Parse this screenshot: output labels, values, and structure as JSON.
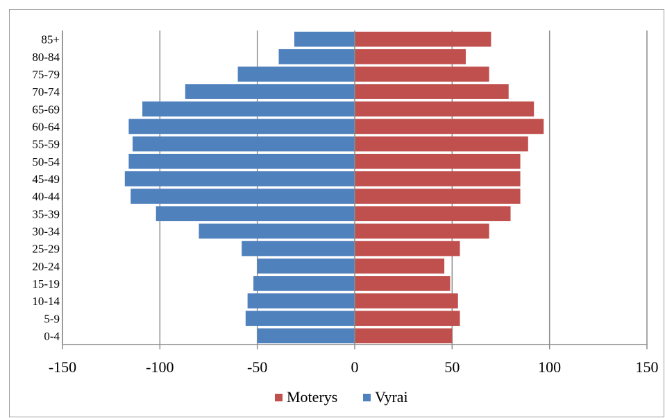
{
  "chart_data": {
    "type": "bar",
    "orientation": "horizontal",
    "categories": [
      "0-4",
      "5-9",
      "10-14",
      "15-19",
      "20-24",
      "25-29",
      "30-34",
      "35-39",
      "40-44",
      "45-49",
      "50-54",
      "55-59",
      "60-64",
      "65-69",
      "70-74",
      "75-79",
      "80-84",
      "85+"
    ],
    "series": [
      {
        "name": "Moterys",
        "color": "#c0504d",
        "values": [
          50,
          54,
          53,
          49,
          46,
          54,
          69,
          80,
          85,
          85,
          85,
          89,
          97,
          92,
          79,
          69,
          57,
          70
        ]
      },
      {
        "name": "Vyrai",
        "color": "#4f81bd",
        "values": [
          -50,
          -56,
          -55,
          -52,
          -50,
          -58,
          -80,
          -102,
          -115,
          -118,
          -116,
          -114,
          -116,
          -109,
          -87,
          -60,
          -39,
          -31
        ]
      }
    ],
    "xlim": [
      -150,
      150
    ],
    "xticks": [
      -150,
      -100,
      -50,
      0,
      50,
      100,
      150
    ],
    "grid": "vertical",
    "legend_position": "bottom"
  }
}
